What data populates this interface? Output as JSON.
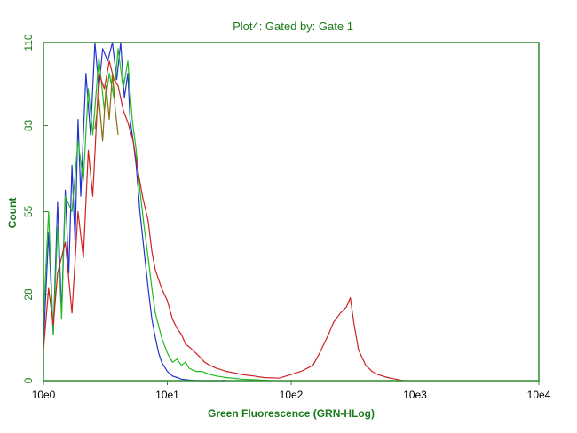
{
  "chart_data": {
    "type": "line",
    "title": "Plot4:  Gated by: Gate 1",
    "xlabel": "Green Fluorescence (GRN-HLog)",
    "ylabel": "Count",
    "x_scale": "log",
    "xlim": [
      1,
      10000
    ],
    "ylim": [
      0,
      110
    ],
    "x_ticks": [
      {
        "value": 1,
        "label": "10e0"
      },
      {
        "value": 10,
        "label": "10e1"
      },
      {
        "value": 100,
        "label": "10e2"
      },
      {
        "value": 1000,
        "label": "10e3"
      },
      {
        "value": 10000,
        "label": "10e4"
      }
    ],
    "y_ticks": [
      {
        "value": 0,
        "label": "0"
      },
      {
        "value": 28,
        "label": "28"
      },
      {
        "value": 55,
        "label": "55"
      },
      {
        "value": 83,
        "label": "83"
      },
      {
        "value": 110,
        "label": "110"
      }
    ],
    "grid": false,
    "colors": {
      "frame": "#2e8b2e",
      "text": "#1a7a1a"
    },
    "series": [
      {
        "color": "#2233cc",
        "x": [
          1,
          1.1,
          1.2,
          1.3,
          1.4,
          1.5,
          1.6,
          1.7,
          1.8,
          1.9,
          2.0,
          2.2,
          2.4,
          2.6,
          2.8,
          3.0,
          3.3,
          3.6,
          3.9,
          4.2,
          4.5,
          4.8,
          5.0,
          5.3,
          5.6,
          6.0,
          6.5,
          7.0,
          7.5,
          8.0,
          8.5,
          9.0,
          10,
          11,
          12,
          13,
          15,
          18,
          20,
          25,
          30
        ],
        "y": [
          12,
          48,
          15,
          58,
          22,
          62,
          35,
          70,
          45,
          85,
          60,
          100,
          80,
          110,
          95,
          108,
          104,
          110,
          98,
          110,
          92,
          100,
          85,
          78,
          70,
          55,
          42,
          30,
          20,
          14,
          9,
          6,
          3,
          1.5,
          1,
          0.5,
          0.2,
          0,
          0,
          0,
          0
        ]
      },
      {
        "color": "#22bb22",
        "x": [
          1,
          1.1,
          1.2,
          1.3,
          1.4,
          1.5,
          1.7,
          1.9,
          2.1,
          2.3,
          2.5,
          2.8,
          3.1,
          3.4,
          3.7,
          4.0,
          4.4,
          4.8,
          5.2,
          5.6,
          6.0,
          6.5,
          7.0,
          7.5,
          8.0,
          9.0,
          10,
          11,
          12,
          13,
          14,
          15,
          17,
          19,
          22,
          25,
          30,
          40,
          50,
          70
        ],
        "y": [
          20,
          55,
          15,
          50,
          20,
          60,
          55,
          78,
          65,
          95,
          80,
          105,
          88,
          100,
          92,
          108,
          95,
          104,
          85,
          75,
          62,
          50,
          40,
          30,
          22,
          14,
          9,
          6,
          7,
          5,
          6,
          4,
          3,
          3,
          2,
          1.5,
          1,
          0.5,
          0.3,
          0
        ]
      },
      {
        "color": "#cc2222",
        "x": [
          1,
          1.1,
          1.2,
          1.3,
          1.5,
          1.7,
          1.9,
          2.1,
          2.3,
          2.5,
          2.8,
          3.1,
          3.4,
          3.7,
          4.0,
          4.4,
          4.8,
          5.3,
          5.8,
          6.3,
          7.0,
          7.5,
          8.0,
          9.0,
          10,
          11,
          12,
          13,
          14,
          16,
          18,
          20,
          22,
          25,
          30,
          35,
          40,
          50,
          60,
          80,
          100,
          120,
          150,
          170,
          200,
          220,
          250,
          280,
          300,
          320,
          350,
          400,
          450,
          500,
          600,
          700,
          800
        ],
        "y": [
          10,
          30,
          18,
          35,
          45,
          22,
          55,
          40,
          75,
          60,
          100,
          95,
          104,
          98,
          96,
          88,
          84,
          78,
          68,
          60,
          52,
          42,
          36,
          30,
          26,
          20,
          17,
          15,
          12,
          10,
          8,
          6,
          5,
          4,
          3,
          2.5,
          2,
          1.5,
          1,
          0.8,
          2,
          3,
          5,
          9,
          15,
          19,
          22,
          24,
          27,
          19,
          10,
          5,
          3,
          2,
          1,
          0.5,
          0
        ]
      },
      {
        "color": "#8a6a10",
        "x": [
          2.6,
          2.8,
          3.0,
          3.2,
          3.4,
          3.6,
          3.8,
          4.0
        ],
        "y": [
          82,
          92,
          78,
          96,
          85,
          100,
          88,
          80
        ]
      }
    ]
  }
}
